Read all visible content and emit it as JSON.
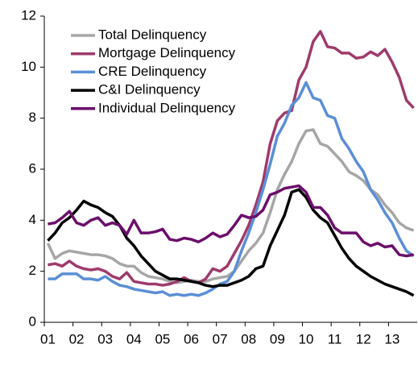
{
  "chart_data": {
    "type": "line",
    "categories": [
      "01",
      null,
      null,
      null,
      "02",
      null,
      null,
      null,
      "03",
      null,
      null,
      null,
      "04",
      null,
      null,
      null,
      "05",
      null,
      null,
      null,
      "06",
      null,
      null,
      null,
      "07",
      null,
      null,
      null,
      "08",
      null,
      null,
      null,
      "09",
      null,
      null,
      null,
      "10",
      null,
      null,
      null,
      "11",
      null,
      null,
      null,
      "12",
      null,
      null,
      null,
      "13",
      null,
      null,
      null
    ],
    "series": [
      {
        "name": "Total Delinquency",
        "color": "#a6a6a6",
        "values": [
          3.1,
          2.5,
          2.7,
          2.8,
          2.75,
          2.7,
          2.65,
          2.65,
          2.6,
          2.5,
          2.3,
          2.2,
          2.2,
          1.95,
          1.8,
          1.75,
          1.7,
          1.6,
          1.55,
          1.6,
          1.65,
          1.6,
          1.6,
          1.7,
          1.75,
          1.8,
          2.0,
          2.4,
          2.8,
          3.1,
          3.5,
          4.3,
          5.2,
          5.8,
          6.3,
          7.0,
          7.5,
          7.55,
          7.0,
          6.9,
          6.6,
          6.3,
          5.9,
          5.75,
          5.55,
          5.2,
          5.0,
          4.6,
          4.3,
          3.9,
          3.7,
          3.6
        ]
      },
      {
        "name": "Mortgage Delinquency",
        "color": "#9e3b6c",
        "values": [
          2.25,
          2.3,
          2.2,
          2.4,
          2.2,
          2.1,
          2.05,
          2.1,
          2.0,
          1.8,
          1.7,
          1.95,
          1.6,
          1.55,
          1.5,
          1.5,
          1.45,
          1.5,
          1.6,
          1.75,
          1.6,
          1.55,
          1.7,
          2.1,
          2.0,
          2.2,
          2.7,
          3.2,
          3.8,
          4.6,
          5.5,
          7.0,
          7.9,
          8.2,
          8.3,
          9.5,
          10.0,
          11.0,
          11.4,
          10.8,
          10.75,
          10.55,
          10.55,
          10.35,
          10.4,
          10.6,
          10.45,
          10.7,
          10.2,
          9.6,
          8.7,
          8.4
        ]
      },
      {
        "name": "CRE Delinquency",
        "color": "#5b8fd6",
        "values": [
          1.7,
          1.7,
          1.9,
          1.9,
          1.9,
          1.7,
          1.7,
          1.65,
          1.8,
          1.6,
          1.45,
          1.4,
          1.3,
          1.25,
          1.2,
          1.15,
          1.2,
          1.05,
          1.1,
          1.05,
          1.1,
          1.05,
          1.15,
          1.3,
          1.5,
          1.6,
          2.0,
          2.8,
          3.5,
          4.3,
          5.2,
          6.2,
          7.3,
          7.8,
          8.5,
          8.8,
          9.4,
          8.8,
          8.7,
          8.1,
          8.0,
          7.2,
          6.8,
          6.3,
          5.9,
          5.2,
          4.8,
          4.3,
          3.9,
          3.3,
          2.8,
          2.6
        ]
      },
      {
        "name": "C&I Delinquency",
        "color": "#000000",
        "values": [
          3.2,
          3.5,
          3.9,
          4.1,
          4.4,
          4.75,
          4.6,
          4.5,
          4.3,
          4.15,
          3.8,
          3.3,
          3.0,
          2.6,
          2.3,
          2.0,
          1.85,
          1.7,
          1.7,
          1.65,
          1.6,
          1.55,
          1.45,
          1.4,
          1.45,
          1.45,
          1.55,
          1.65,
          1.8,
          2.1,
          2.2,
          3.0,
          3.6,
          4.2,
          5.1,
          5.2,
          4.9,
          4.4,
          4.1,
          3.9,
          3.4,
          2.9,
          2.5,
          2.2,
          2.0,
          1.8,
          1.65,
          1.5,
          1.4,
          1.3,
          1.2,
          1.05
        ]
      },
      {
        "name": "Individual Delinquency",
        "color": "#6b0f6b",
        "values": [
          3.85,
          3.9,
          4.1,
          4.35,
          3.9,
          3.8,
          4.0,
          4.1,
          3.8,
          3.9,
          3.8,
          3.45,
          4.0,
          3.5,
          3.5,
          3.55,
          3.65,
          3.25,
          3.2,
          3.3,
          3.25,
          3.15,
          3.3,
          3.5,
          3.35,
          3.45,
          3.8,
          4.2,
          4.1,
          4.15,
          4.4,
          5.0,
          5.1,
          5.25,
          5.3,
          5.35,
          5.1,
          4.5,
          4.5,
          4.2,
          3.7,
          3.5,
          3.5,
          3.5,
          3.15,
          3.0,
          3.1,
          2.95,
          3.0,
          2.65,
          2.6,
          2.65
        ]
      }
    ],
    "ylim": [
      0,
      12
    ],
    "yticks": [
      0,
      2,
      4,
      6,
      8,
      10,
      12
    ],
    "grid": false,
    "legend": "upper left"
  }
}
